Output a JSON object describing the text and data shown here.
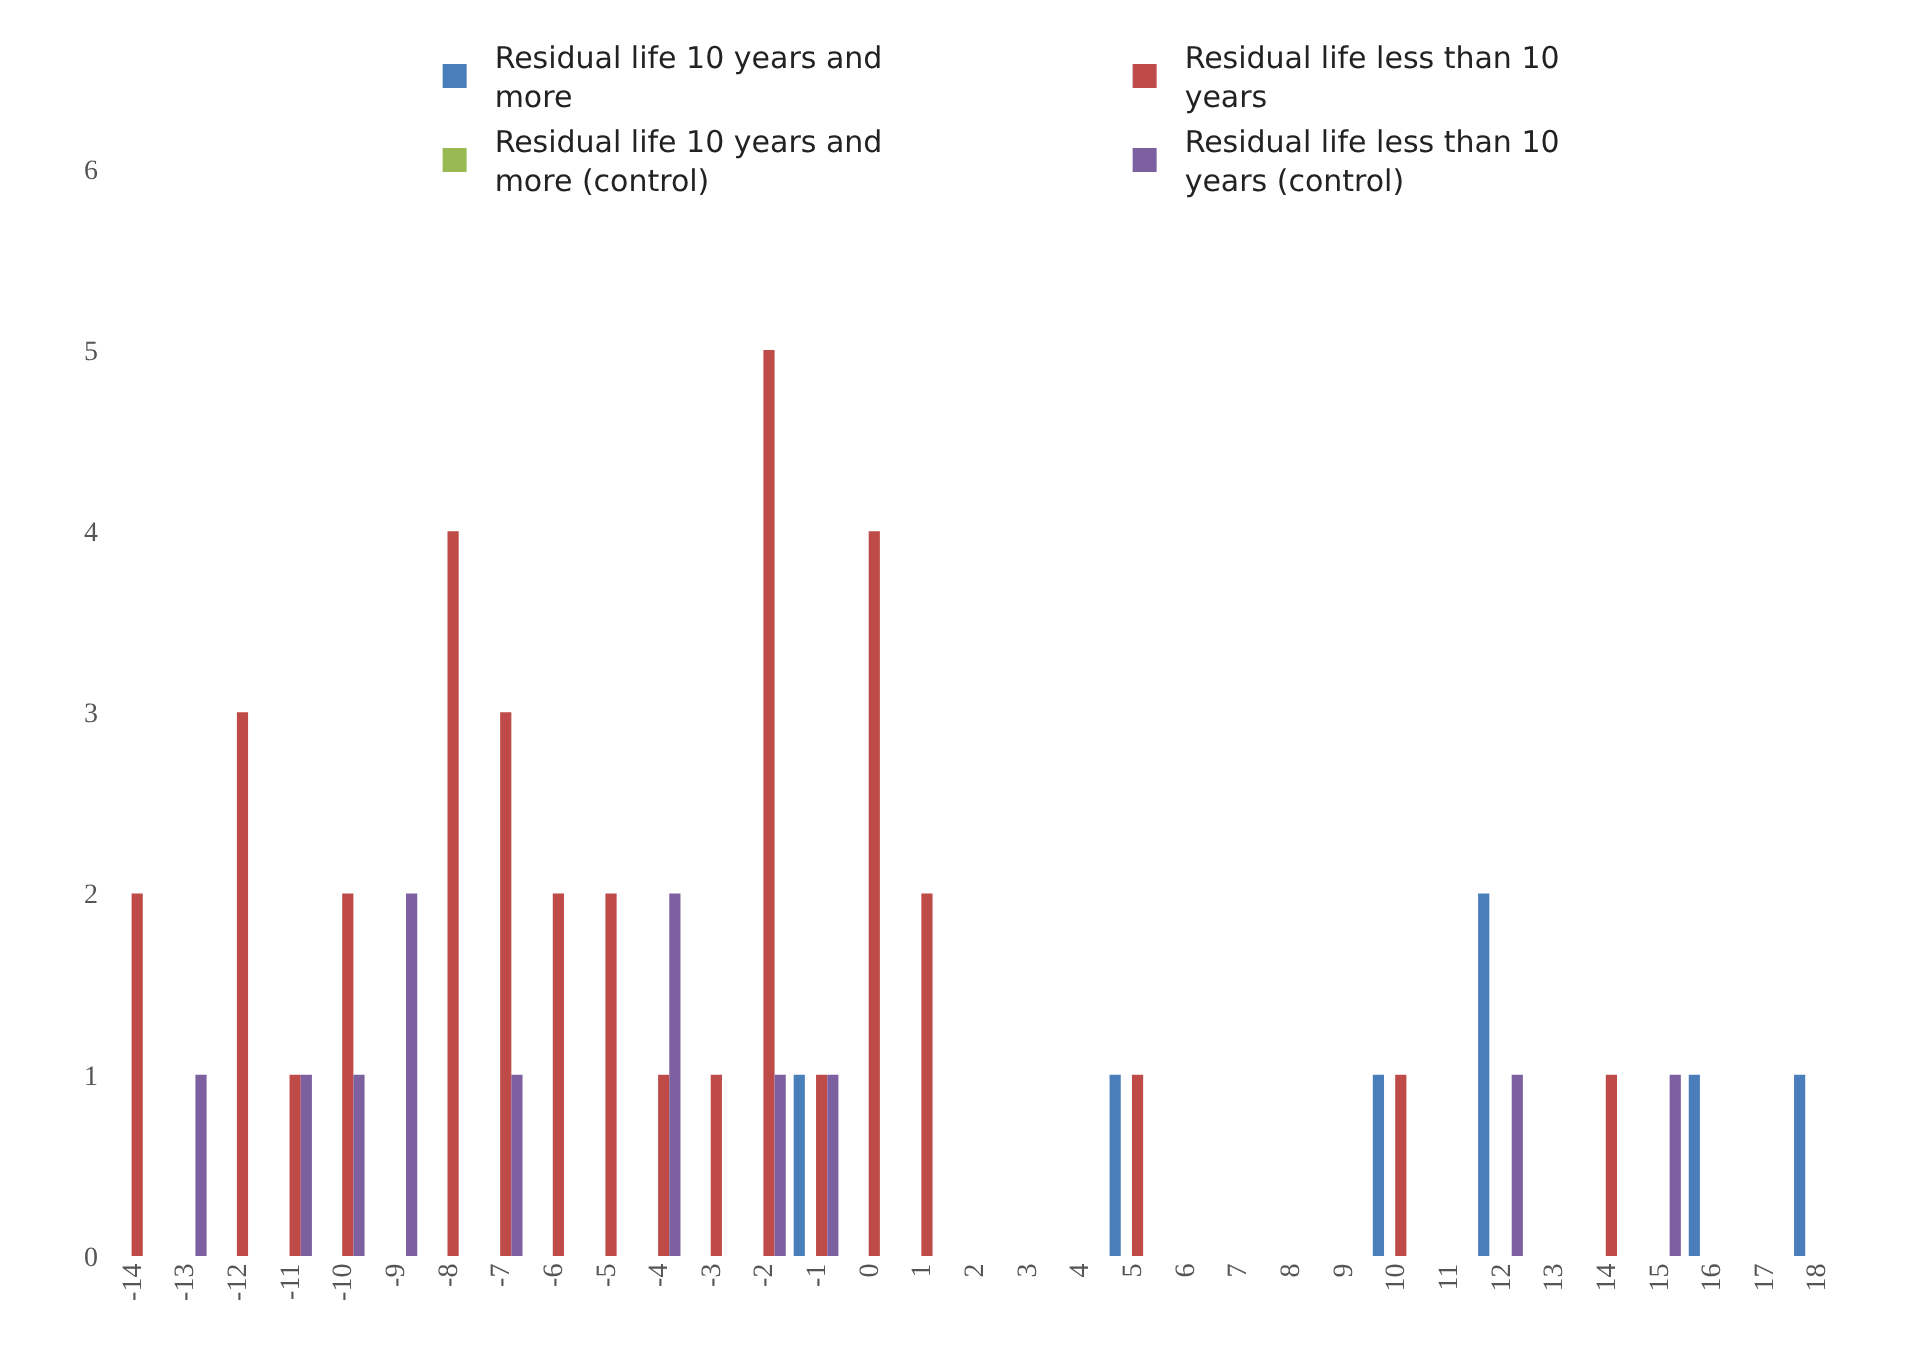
{
  "chart_data": {
    "type": "bar",
    "categories": [
      "-14",
      "-13",
      "-12",
      "-11",
      "-10",
      "-9",
      "-8",
      "-7",
      "-6",
      "-5",
      "-4",
      "-3",
      "-2",
      "-1",
      "0",
      "1",
      "2",
      "3",
      "4",
      "5",
      "6",
      "7",
      "8",
      "9",
      "10",
      "11",
      "12",
      "13",
      "14",
      "15",
      "16",
      "17",
      "18"
    ],
    "series": [
      {
        "name": "Residual life 10 years and more",
        "color": "#4a7ebb",
        "values": [
          null,
          null,
          null,
          null,
          null,
          null,
          null,
          null,
          null,
          null,
          null,
          null,
          null,
          1,
          null,
          null,
          null,
          null,
          null,
          1,
          null,
          null,
          null,
          null,
          1,
          null,
          2,
          null,
          null,
          null,
          1,
          null,
          1
        ]
      },
      {
        "name": "Residual life 10 years and more (control)",
        "color": "#98b954",
        "values": [
          null,
          null,
          null,
          null,
          null,
          null,
          null,
          null,
          null,
          null,
          null,
          null,
          null,
          null,
          null,
          null,
          null,
          null,
          null,
          null,
          null,
          null,
          null,
          null,
          null,
          null,
          null,
          null,
          null,
          null,
          null,
          null,
          null
        ]
      },
      {
        "name": "Residual life less than 10 years",
        "color": "#be4b48",
        "values": [
          2,
          null,
          3,
          1,
          2,
          null,
          4,
          3,
          2,
          2,
          1,
          1,
          5,
          1,
          4,
          2,
          null,
          null,
          null,
          1,
          null,
          null,
          null,
          null,
          1,
          null,
          null,
          null,
          1,
          null,
          null,
          null,
          null
        ]
      },
      {
        "name": "Residual life less than 10 years (control)",
        "color": "#7d60a0",
        "values": [
          null,
          1,
          null,
          1,
          1,
          2,
          null,
          1,
          null,
          null,
          2,
          null,
          1,
          1,
          null,
          null,
          null,
          null,
          null,
          null,
          null,
          null,
          null,
          null,
          null,
          null,
          1,
          null,
          null,
          1,
          null,
          null,
          null
        ]
      }
    ],
    "ylim": [
      0,
      6.6
    ],
    "yticks": [
      0,
      1,
      2,
      3,
      4,
      5,
      6
    ],
    "legend": "top"
  }
}
